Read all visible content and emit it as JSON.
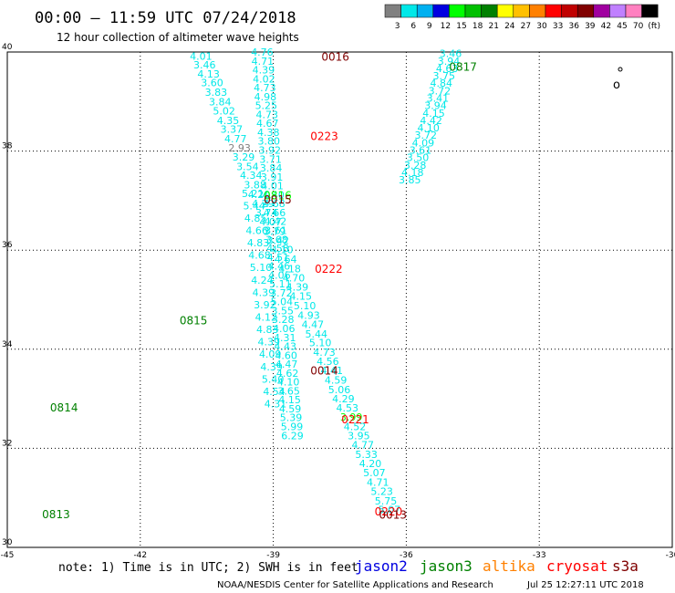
{
  "header": {
    "title": "00:00 – 11:59 UTC 07/24/2018",
    "subtitle": "12 hour collection of altimeter wave heights"
  },
  "colorbar": {
    "colors": [
      "#808080",
      "#00e8e8",
      "#00b0f0",
      "#0000e0",
      "#00ff00",
      "#00c000",
      "#008000",
      "#ffff00",
      "#ffc000",
      "#ff8000",
      "#ff0000",
      "#c00000",
      "#800000",
      "#a000a0",
      "#c080ff",
      "#ff80c0",
      "#000000"
    ],
    "labels": [
      "3",
      "6",
      "9",
      "12",
      "15",
      "18",
      "21",
      "24",
      "27",
      "30",
      "33",
      "36",
      "39",
      "42",
      "45",
      "70",
      "(ft)"
    ]
  },
  "footer": {
    "note": "note: 1) Time is in UTC; 2) SWH is in feet",
    "satellites": [
      {
        "name": "jason2",
        "color": "#0000e0"
      },
      {
        "name": "jason3",
        "color": "#008000"
      },
      {
        "name": "altika",
        "color": "#ff8000"
      },
      {
        "name": "cryosat",
        "color": "#ff0000"
      },
      {
        "name": "s3a",
        "color": "#800000"
      }
    ],
    "credit": "NOAA/NESDIS Center for Satellite Applications and Research",
    "timestamp": "Jul 25 12:27:11 UTC 2018"
  },
  "chart_data": {
    "type": "scatter",
    "xlim": [
      -45,
      -30
    ],
    "ylim": [
      30,
      40
    ],
    "xticks": [
      "-45",
      "-42",
      "-39",
      "-36",
      "-33",
      "-30"
    ],
    "yticks": [
      "30",
      "32",
      "34",
      "36",
      "38",
      "40"
    ],
    "grid": true,
    "tracks": [
      {
        "color": "#00e8e8",
        "points": [
          [
            -40.63,
            39.92,
            "4.01"
          ],
          [
            -40.55,
            39.74,
            "3.46"
          ],
          [
            -40.46,
            39.56,
            "4.13"
          ],
          [
            -40.38,
            39.38,
            "3.60"
          ],
          [
            -40.29,
            39.19,
            "3.83"
          ],
          [
            -40.2,
            39.0,
            "3.84"
          ],
          [
            -40.11,
            38.81,
            "5.02"
          ],
          [
            -40.02,
            38.62,
            "4.35"
          ],
          [
            -39.94,
            38.44,
            "3.37"
          ],
          [
            -39.85,
            38.25,
            "4.77"
          ],
          [
            -39.67,
            37.88,
            "3.29"
          ],
          [
            -39.58,
            37.69,
            "3.54"
          ],
          [
            -39.5,
            37.51,
            "4.34"
          ],
          [
            -39.41,
            37.32,
            "3.88"
          ],
          [
            -39.32,
            37.13,
            "4.20"
          ],
          [
            -39.23,
            36.94,
            "4.29"
          ],
          [
            -39.15,
            36.76,
            "3.74"
          ],
          [
            -39.06,
            36.57,
            "4.07"
          ],
          [
            -38.97,
            36.38,
            "3.79"
          ],
          [
            -38.89,
            36.2,
            "3.42"
          ],
          [
            -38.8,
            36.01,
            "4.10"
          ],
          [
            -38.72,
            35.82,
            "4.64"
          ],
          [
            -38.63,
            35.63,
            "4.18"
          ],
          [
            -38.54,
            35.44,
            "4.70"
          ],
          [
            -38.46,
            35.26,
            "4.39"
          ],
          [
            -38.38,
            35.07,
            "4.15"
          ],
          [
            -38.29,
            34.88,
            "5.10"
          ],
          [
            -38.2,
            34.69,
            "4.93"
          ],
          [
            -38.11,
            34.5,
            "4.47"
          ],
          [
            -38.03,
            34.31,
            "5.44"
          ],
          [
            -37.94,
            34.13,
            "5.10"
          ],
          [
            -37.85,
            33.94,
            "4.73"
          ],
          [
            -37.77,
            33.76,
            "4.56"
          ],
          [
            -37.68,
            33.57,
            "4.41"
          ],
          [
            -37.59,
            33.38,
            "4.59"
          ],
          [
            -37.51,
            33.19,
            "5.06"
          ],
          [
            -37.42,
            33.0,
            "4.29"
          ],
          [
            -37.33,
            32.82,
            "4.53"
          ],
          [
            -37.16,
            32.44,
            "4.52"
          ],
          [
            -37.07,
            32.26,
            "3.95"
          ],
          [
            -36.98,
            32.07,
            "4.77"
          ],
          [
            -36.9,
            31.88,
            "5.33"
          ],
          [
            -36.81,
            31.69,
            "4.20"
          ],
          [
            -36.72,
            31.51,
            "5.07"
          ],
          [
            -36.64,
            31.32,
            "4.71"
          ],
          [
            -36.55,
            31.13,
            "5.23"
          ],
          [
            -36.46,
            30.94,
            "5.75"
          ],
          [
            -36.38,
            30.76,
            "5.07"
          ]
        ]
      },
      {
        "color": "#808080",
        "points": [
          [
            -39.76,
            38.07,
            "2.93"
          ]
        ]
      },
      {
        "color": "#00ff00",
        "points": [
          [
            -37.24,
            32.63,
            "3.99"
          ]
        ]
      },
      {
        "color": "#00e8e8",
        "points": [
          [
            -39.25,
            40.0,
            "4.76"
          ],
          [
            -39.24,
            39.82,
            "4.71"
          ],
          [
            -39.22,
            39.64,
            "4.39"
          ],
          [
            -39.21,
            39.46,
            "4.02"
          ],
          [
            -39.19,
            39.28,
            "4.73"
          ],
          [
            -39.18,
            39.1,
            "4.98"
          ],
          [
            -39.16,
            38.92,
            "5.25"
          ],
          [
            -39.14,
            38.74,
            "4.73"
          ],
          [
            -39.13,
            38.56,
            "4.67"
          ],
          [
            -39.11,
            38.38,
            "4.38"
          ],
          [
            -39.1,
            38.2,
            "3.80"
          ],
          [
            -39.08,
            38.02,
            "3.92"
          ],
          [
            -39.06,
            37.84,
            "3.71"
          ],
          [
            -39.05,
            37.66,
            "3.84"
          ],
          [
            -39.03,
            37.48,
            "3.91"
          ],
          [
            -39.02,
            37.3,
            "4.01"
          ],
          [
            -39.0,
            37.12,
            "4.40"
          ],
          [
            -38.98,
            36.94,
            "4.68"
          ],
          [
            -38.97,
            36.76,
            "4.66"
          ],
          [
            -38.95,
            36.58,
            "4.42"
          ],
          [
            -38.94,
            36.4,
            "3.61"
          ],
          [
            -38.92,
            36.22,
            "3.68"
          ],
          [
            -38.9,
            36.04,
            "4.58"
          ],
          [
            -38.89,
            35.86,
            "4.51"
          ],
          [
            -38.87,
            35.68,
            "4.46"
          ],
          [
            -38.86,
            35.5,
            "4.06"
          ],
          [
            -38.84,
            35.32,
            "5.11"
          ],
          [
            -38.82,
            35.14,
            "3.72"
          ],
          [
            -38.81,
            34.96,
            "5.04"
          ],
          [
            -38.79,
            34.78,
            "3.55"
          ],
          [
            -38.78,
            34.6,
            "3.28"
          ],
          [
            -38.76,
            34.42,
            "4.06"
          ],
          [
            -38.74,
            34.24,
            "4.31"
          ],
          [
            -38.73,
            34.06,
            "4.43"
          ],
          [
            -38.71,
            33.88,
            "4.60"
          ],
          [
            -38.7,
            33.7,
            "4.47"
          ],
          [
            -38.68,
            33.52,
            "4.62"
          ],
          [
            -38.66,
            33.34,
            "4.10"
          ],
          [
            -38.65,
            33.16,
            "3.65"
          ],
          [
            -38.63,
            32.98,
            "4.15"
          ],
          [
            -38.62,
            32.8,
            "4.59"
          ],
          [
            -38.6,
            32.62,
            "5.39"
          ],
          [
            -38.58,
            32.44,
            "5.99"
          ],
          [
            -38.57,
            32.26,
            "6.29"
          ]
        ]
      },
      {
        "color": "#00e8e8",
        "points": [
          [
            -39.46,
            37.15,
            "5.21"
          ],
          [
            -39.43,
            36.9,
            "5.44"
          ],
          [
            -39.4,
            36.65,
            "4.85"
          ],
          [
            -39.37,
            36.4,
            "4.66"
          ],
          [
            -39.34,
            36.15,
            "4.83"
          ],
          [
            -39.31,
            35.9,
            "4.68"
          ],
          [
            -39.28,
            35.65,
            "5.10"
          ],
          [
            -39.25,
            35.4,
            "4.24"
          ],
          [
            -39.22,
            35.15,
            "4.39"
          ],
          [
            -39.19,
            34.9,
            "3.92"
          ],
          [
            -39.16,
            34.65,
            "4.12"
          ],
          [
            -39.13,
            34.4,
            "4.83"
          ],
          [
            -39.1,
            34.15,
            "4.39"
          ],
          [
            -39.07,
            33.9,
            "4.09"
          ],
          [
            -39.04,
            33.65,
            "4.39"
          ],
          [
            -39.01,
            33.4,
            "5.40"
          ],
          [
            -38.98,
            33.15,
            "4.54"
          ],
          [
            -38.95,
            32.9,
            "4.31"
          ]
        ]
      },
      {
        "color": "#00e8e8",
        "points": [
          [
            -35.0,
            39.97,
            "3.46"
          ],
          [
            -35.04,
            39.82,
            "3.94"
          ],
          [
            -35.08,
            39.67,
            "4.63"
          ],
          [
            -35.15,
            39.52,
            "3.75"
          ],
          [
            -35.21,
            39.37,
            "4.84"
          ],
          [
            -35.25,
            39.22,
            "3.72"
          ],
          [
            -35.29,
            39.07,
            "3.41"
          ],
          [
            -35.34,
            38.92,
            "3.94"
          ],
          [
            -35.38,
            38.77,
            "4.15"
          ],
          [
            -35.44,
            38.62,
            "4.42"
          ],
          [
            -35.5,
            38.47,
            "4.10"
          ],
          [
            -35.56,
            38.32,
            "3.72"
          ],
          [
            -35.62,
            38.17,
            "4.09"
          ],
          [
            -35.68,
            38.02,
            "3.61"
          ],
          [
            -35.74,
            37.87,
            "3.50"
          ],
          [
            -35.8,
            37.72,
            "3.28"
          ],
          [
            -35.86,
            37.57,
            "4.18"
          ],
          [
            -35.92,
            37.42,
            "3.85"
          ]
        ]
      }
    ],
    "pass_labels": [
      {
        "text": "0016",
        "x": -37.6,
        "y": 39.9,
        "color": "#800000"
      },
      {
        "text": "0817",
        "x": -34.72,
        "y": 39.7,
        "color": "#008000"
      },
      {
        "text": "0223",
        "x": -37.85,
        "y": 38.3,
        "color": "#ff0000"
      },
      {
        "text": "0816",
        "x": -38.9,
        "y": 37.1,
        "color": "#00ff00"
      },
      {
        "text": "0015",
        "x": -38.9,
        "y": 37.02,
        "color": "#800000"
      },
      {
        "text": "0222",
        "x": -37.75,
        "y": 35.62,
        "color": "#ff0000"
      },
      {
        "text": "0815",
        "x": -40.8,
        "y": 34.58,
        "color": "#008000"
      },
      {
        "text": "0014",
        "x": -37.85,
        "y": 33.56,
        "color": "#800000"
      },
      {
        "text": "0814",
        "x": -43.72,
        "y": 32.82,
        "color": "#008000"
      },
      {
        "text": "0221",
        "x": -37.15,
        "y": 32.58,
        "color": "#ff0000"
      },
      {
        "text": "0813",
        "x": -43.9,
        "y": 30.66,
        "color": "#008000"
      },
      {
        "text": "0220",
        "x": -36.4,
        "y": 30.72,
        "color": "#ff0000"
      },
      {
        "text": "0013",
        "x": -36.3,
        "y": 30.65,
        "color": "#800000"
      }
    ]
  }
}
